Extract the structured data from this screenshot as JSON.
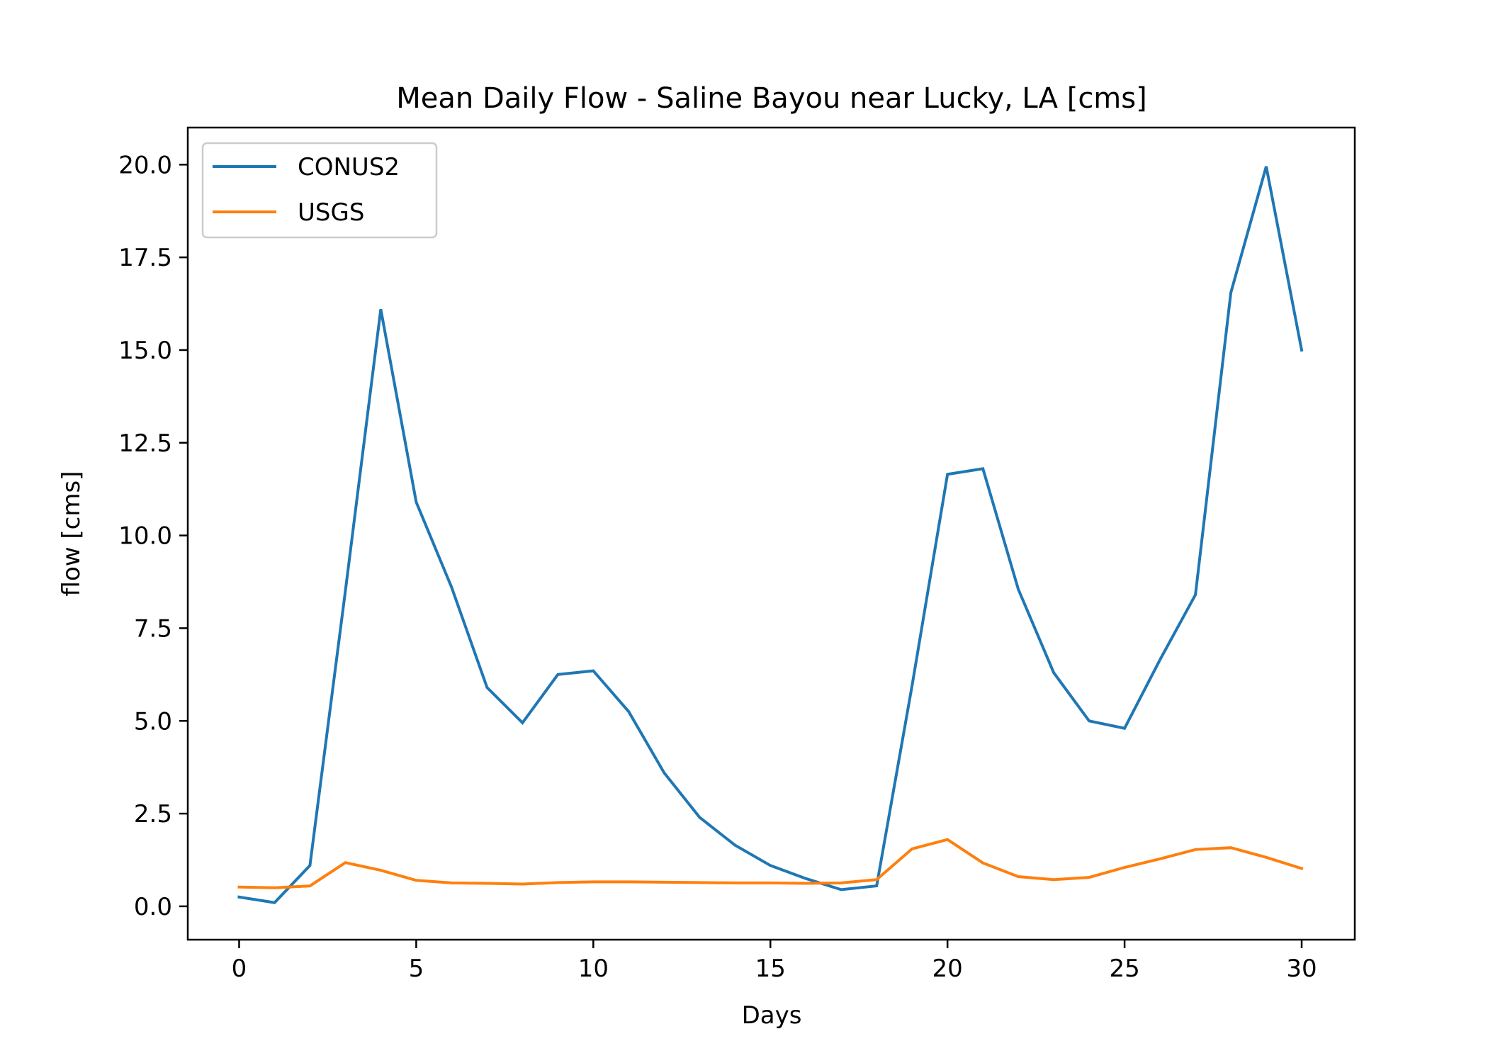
{
  "chart_data": {
    "type": "line",
    "title": "Mean Daily Flow - Saline Bayou near Lucky, LA [cms]",
    "xlabel": "Days",
    "ylabel": "flow [cms]",
    "xlim": [
      -1.45,
      31.5
    ],
    "ylim": [
      -0.9,
      21.0
    ],
    "xticks": [
      0,
      5,
      10,
      15,
      20,
      25,
      30
    ],
    "yticks": [
      0.0,
      2.5,
      5.0,
      7.5,
      10.0,
      12.5,
      15.0,
      17.5,
      20.0
    ],
    "ytick_labels": [
      "0.0",
      "2.5",
      "5.0",
      "7.5",
      "10.0",
      "12.5",
      "15.0",
      "17.5",
      "20.0"
    ],
    "grid": false,
    "legend_position": "top-left",
    "x": [
      0,
      1,
      2,
      3,
      4,
      5,
      6,
      7,
      8,
      9,
      10,
      11,
      12,
      13,
      14,
      15,
      16,
      17,
      18,
      19,
      20,
      21,
      22,
      23,
      24,
      25,
      26,
      27,
      28,
      29,
      30
    ],
    "series": [
      {
        "name": "CONUS2",
        "color": "#1f77b4",
        "values": [
          0.25,
          0.1,
          1.1,
          8.5,
          16.1,
          10.9,
          8.6,
          5.9,
          4.95,
          6.25,
          6.35,
          5.25,
          3.6,
          2.4,
          1.65,
          1.1,
          0.75,
          0.45,
          0.55,
          5.95,
          11.65,
          11.8,
          8.55,
          6.3,
          5.0,
          4.8,
          6.65,
          8.4,
          16.55,
          19.95,
          15.0
        ]
      },
      {
        "name": "USGS",
        "color": "#ff7f0e",
        "values": [
          0.52,
          0.5,
          0.55,
          1.18,
          0.97,
          0.7,
          0.63,
          0.62,
          0.6,
          0.64,
          0.66,
          0.66,
          0.65,
          0.64,
          0.63,
          0.63,
          0.62,
          0.63,
          0.72,
          1.55,
          1.8,
          1.17,
          0.8,
          0.72,
          0.78,
          1.05,
          1.28,
          1.53,
          1.58,
          1.32,
          1.02
        ]
      }
    ]
  }
}
